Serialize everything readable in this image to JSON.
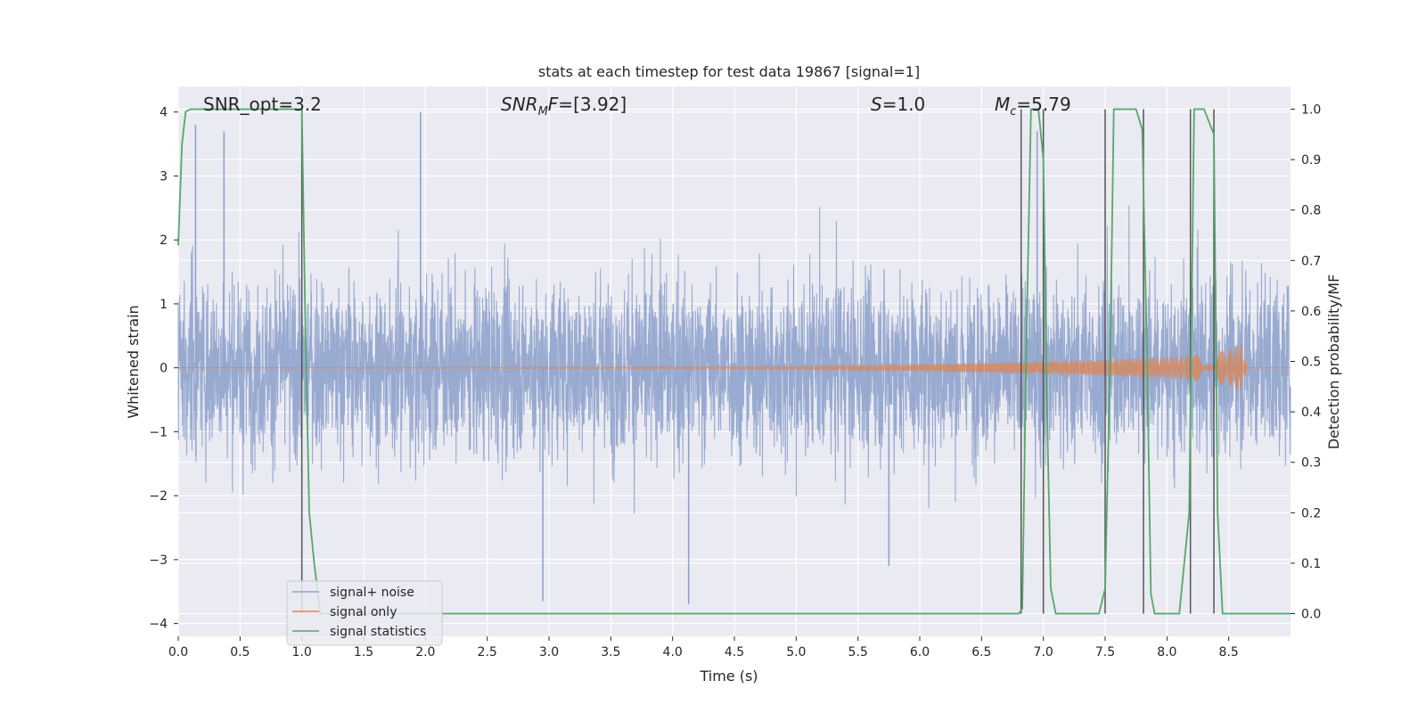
{
  "chart_data": {
    "type": "line",
    "title": "stats at each timestep for test data 19867 [signal=1]",
    "xlabel": "Time (s)",
    "ylabel_left": "Whitened strain",
    "ylabel_right": "Detection probability/MF",
    "xlim": [
      0.0,
      9.0
    ],
    "ylim_left": [
      -4.2,
      4.4
    ],
    "ylim_right": [
      -0.045,
      1.045
    ],
    "xticks": [
      "0.0",
      "0.5",
      "1.0",
      "1.5",
      "2.0",
      "2.5",
      "3.0",
      "3.5",
      "4.0",
      "4.5",
      "5.0",
      "5.5",
      "6.0",
      "6.5",
      "7.0",
      "7.5",
      "8.0",
      "8.5"
    ],
    "yticks_left": [
      "4",
      "3",
      "2",
      "1",
      "0",
      "−1",
      "−2",
      "−3",
      "−4"
    ],
    "yticks_right": [
      "1.0",
      "0.9",
      "0.8",
      "0.7",
      "0.6",
      "0.5",
      "0.4",
      "0.3",
      "0.2",
      "0.1",
      "0.0"
    ],
    "grid": true,
    "legend_placement": "lower-left",
    "annotations": {
      "snr_opt": "SNR_opt=3.2",
      "snr_mf": "[3.92]",
      "s_value": "=1.0",
      "mc_value": "=5.79"
    },
    "series": [
      {
        "name": "signal+ noise",
        "color": "#8fa3cc",
        "axis": "left",
        "summary": "whitened noise, roughly in [-2, 2] with spikes up to 4 and down to -3.7",
        "typical_range": [
          -2.0,
          2.0
        ],
        "peaks": [
          [
            0.14,
            3.8
          ],
          [
            0.37,
            3.7
          ],
          [
            1.96,
            4.0
          ],
          [
            6.95,
            3.7
          ]
        ],
        "troughs": [
          [
            2.95,
            -3.65
          ],
          [
            4.13,
            -3.7
          ],
          [
            5.75,
            -3.1
          ]
        ]
      },
      {
        "name": "signal only",
        "color": "#dd8452",
        "axis": "left",
        "summary": "chirp, amplitude ~0 until 5, growing to ~0.35 near 8.65, then ends",
        "envelope": [
          [
            0.0,
            0.0
          ],
          [
            5.0,
            0.02
          ],
          [
            6.0,
            0.05
          ],
          [
            7.0,
            0.1
          ],
          [
            7.5,
            0.13
          ],
          [
            8.0,
            0.17
          ],
          [
            8.3,
            0.22
          ],
          [
            8.5,
            0.28
          ],
          [
            8.6,
            0.38
          ],
          [
            8.65,
            0.0
          ]
        ]
      },
      {
        "name": "signal statistics",
        "color": "#55a868",
        "axis": "right",
        "x": [
          0.0,
          0.03,
          0.06,
          0.1,
          0.2,
          0.5,
          0.8,
          0.98,
          1.0,
          1.03,
          1.06,
          1.1,
          1.15,
          6.5,
          6.8,
          6.83,
          6.86,
          6.9,
          6.96,
          7.0,
          7.03,
          7.06,
          7.1,
          7.45,
          7.5,
          7.54,
          7.57,
          7.6,
          7.75,
          7.8,
          7.84,
          7.87,
          7.9,
          8.1,
          8.18,
          8.22,
          8.25,
          8.3,
          8.38,
          8.41,
          8.45,
          8.5,
          8.7,
          9.0
        ],
        "values": [
          0.73,
          0.93,
          0.995,
          1.0,
          1.0,
          1.0,
          1.0,
          1.0,
          1.0,
          0.55,
          0.2,
          0.1,
          0.0,
          0.0,
          0.0,
          0.01,
          0.5,
          1.0,
          1.0,
          0.9,
          0.4,
          0.05,
          0.0,
          0.0,
          0.05,
          0.5,
          1.0,
          1.0,
          1.0,
          0.96,
          0.5,
          0.04,
          0.0,
          0.0,
          0.2,
          1.0,
          1.0,
          1.0,
          0.95,
          0.2,
          0.0,
          0.0,
          0.0,
          0.0
        ]
      }
    ],
    "vertical_markers": [
      1.0,
      6.82,
      7.0,
      7.5,
      7.81,
      8.19,
      8.38
    ]
  }
}
